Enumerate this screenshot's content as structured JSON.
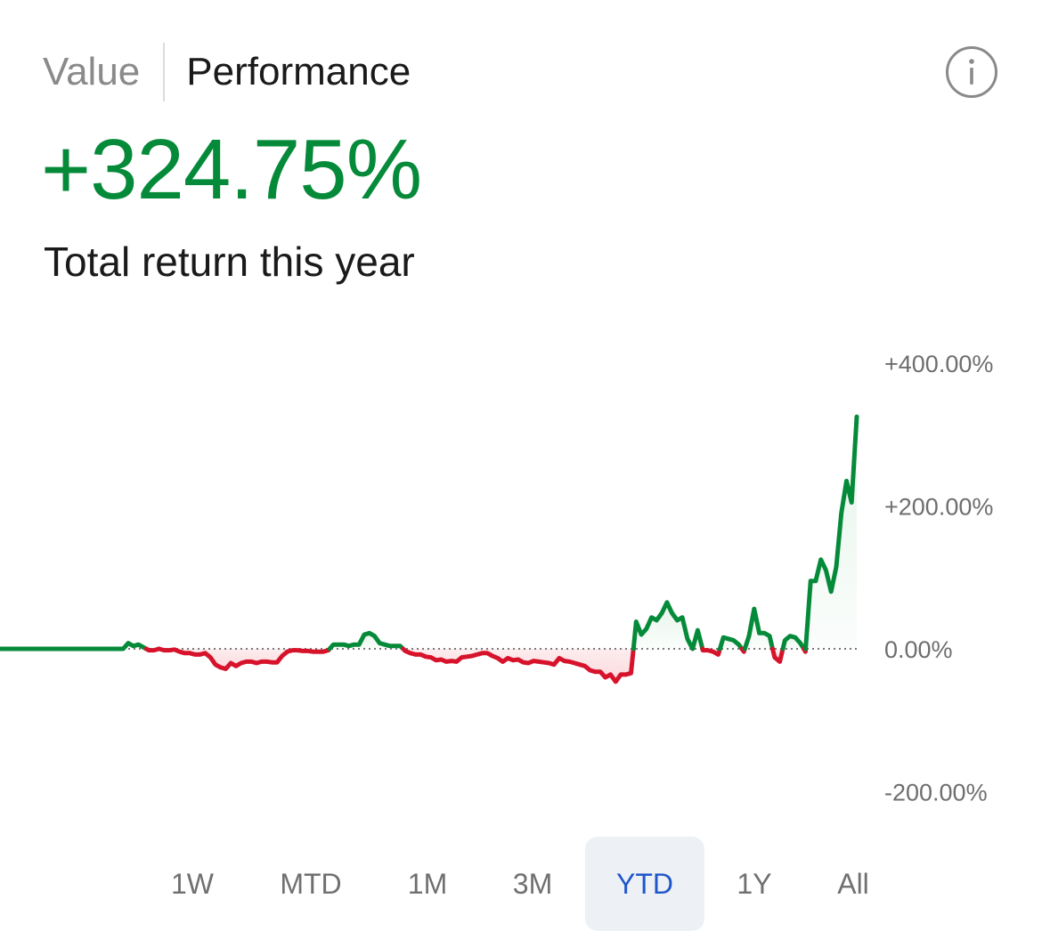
{
  "tabs": [
    {
      "label": "Value",
      "selected": false
    },
    {
      "label": "Performance",
      "selected": true
    }
  ],
  "info_icon": "info-icon",
  "headline": {
    "value": "+324.75%",
    "caption": "Total return this year",
    "color": "#058a3a"
  },
  "colors": {
    "positive": "#058a3a",
    "negative": "#d7132c",
    "positive_fill": "#e3f3e8",
    "negative_fill": "#fbdadd",
    "baseline": "#7a7a7a",
    "selected_range_text": "#1f56c9"
  },
  "chart_data": {
    "type": "line",
    "baseline": 0,
    "y_ticks": [
      400,
      200,
      0,
      -200
    ],
    "y_tick_labels": [
      "+400.00%",
      "+200.00%",
      "0.00%",
      "-200.00%"
    ],
    "ylim": [
      -200,
      400
    ],
    "grid": false,
    "series": [
      {
        "values": [
          0,
          0,
          0,
          0,
          0,
          0,
          0,
          0,
          0,
          0,
          0,
          0,
          0,
          0,
          0,
          0,
          0,
          0,
          0,
          0,
          0,
          0,
          0,
          0,
          0,
          8,
          4,
          6,
          2,
          -2,
          -2,
          0,
          -2,
          -2,
          -1,
          -4,
          -6,
          -6,
          -8,
          -8,
          -6,
          -12,
          -22,
          -26,
          -28,
          -20,
          -24,
          -20,
          -18,
          -18,
          -20,
          -18,
          -18,
          -19,
          -19,
          -10,
          -4,
          -2,
          -2,
          -3,
          -3,
          -4,
          -4,
          -4,
          -2,
          6,
          6,
          6,
          4,
          6,
          6,
          20,
          22,
          18,
          8,
          6,
          4,
          4,
          4,
          -3,
          -6,
          -8,
          -8,
          -11,
          -12,
          -16,
          -15,
          -18,
          -17,
          -18,
          -12,
          -11,
          -10,
          -8,
          -6,
          -6,
          -10,
          -13,
          -18,
          -13,
          -16,
          -15,
          -19,
          -20,
          -17,
          -18,
          -19,
          -20,
          -22,
          -13,
          -17,
          -18,
          -20,
          -22,
          -24,
          -30,
          -32,
          -32,
          -40,
          -36,
          -46,
          -36,
          -36,
          -34,
          38,
          20,
          28,
          44,
          40,
          50,
          65,
          50,
          40,
          44,
          14,
          0,
          26,
          -2,
          -2,
          -4,
          -8,
          16,
          14,
          12,
          6,
          -4,
          18,
          56,
          22,
          22,
          18,
          -12,
          -18,
          12,
          18,
          16,
          8,
          -4,
          95,
          95,
          125,
          110,
          80,
          115,
          190,
          235,
          205,
          325
        ]
      }
    ]
  },
  "ranges": [
    {
      "label": "1W",
      "selected": false
    },
    {
      "label": "MTD",
      "selected": false
    },
    {
      "label": "1M",
      "selected": false
    },
    {
      "label": "3M",
      "selected": false
    },
    {
      "label": "YTD",
      "selected": true
    },
    {
      "label": "1Y",
      "selected": false
    },
    {
      "label": "All",
      "selected": false
    }
  ]
}
